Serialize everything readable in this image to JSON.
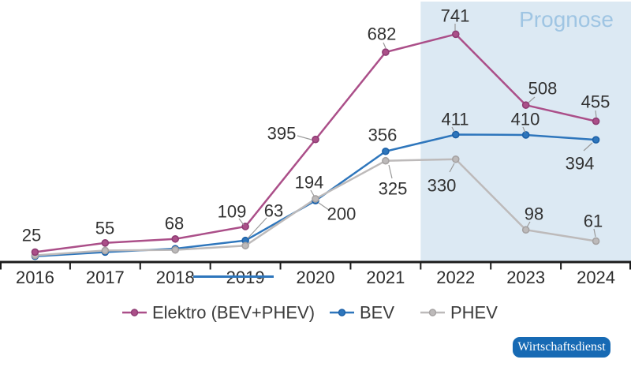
{
  "chart_data": {
    "type": "line",
    "title": "",
    "xlabel": "",
    "ylabel": "",
    "categories": [
      "2016",
      "2017",
      "2018",
      "2019",
      "2020",
      "2021",
      "2022",
      "2023",
      "2024"
    ],
    "series": [
      {
        "id": "elektro",
        "name": "Elektro (BEV+PHEV)",
        "color": "#ab4f89",
        "dot_color": "#8e3c73",
        "values": [
          25,
          55,
          68,
          109,
          395,
          682,
          741,
          508,
          455
        ],
        "data_labels": [
          "25",
          "55",
          "68",
          "109",
          "395",
          "682",
          "741",
          "508",
          "455"
        ]
      },
      {
        "id": "bev",
        "name": "BEV",
        "color": "#2e76bc",
        "dot_color": "#1c60a7",
        "values": [
          11,
          25,
          36,
          63,
          194,
          356,
          411,
          410,
          394
        ],
        "data_labels": [
          "",
          "",
          "",
          "63",
          "194",
          "356",
          "411",
          "410",
          "394"
        ]
      },
      {
        "id": "phev",
        "name": "PHEV",
        "color": "#bdbaba",
        "dot_color": "#a5a2a2",
        "values": [
          14,
          30,
          32,
          46,
          200,
          325,
          330,
          98,
          61
        ],
        "data_labels": [
          "",
          "",
          "",
          "",
          "200",
          "325",
          "330",
          "98",
          "61"
        ]
      }
    ],
    "forecast": {
      "label": "Prognose",
      "from_category": "2022",
      "bg_color": "#dce9f3",
      "label_color": "#9fc5e3"
    },
    "ylim": [
      0,
      860
    ],
    "grid": false,
    "legend_position": "bottom",
    "axis_color": "#1c1c1c",
    "label_color": "#323232"
  },
  "badge": {
    "label": "Wirtschaftsdienst",
    "bg_color": "#176ab4",
    "text_color": "#ffffff"
  }
}
